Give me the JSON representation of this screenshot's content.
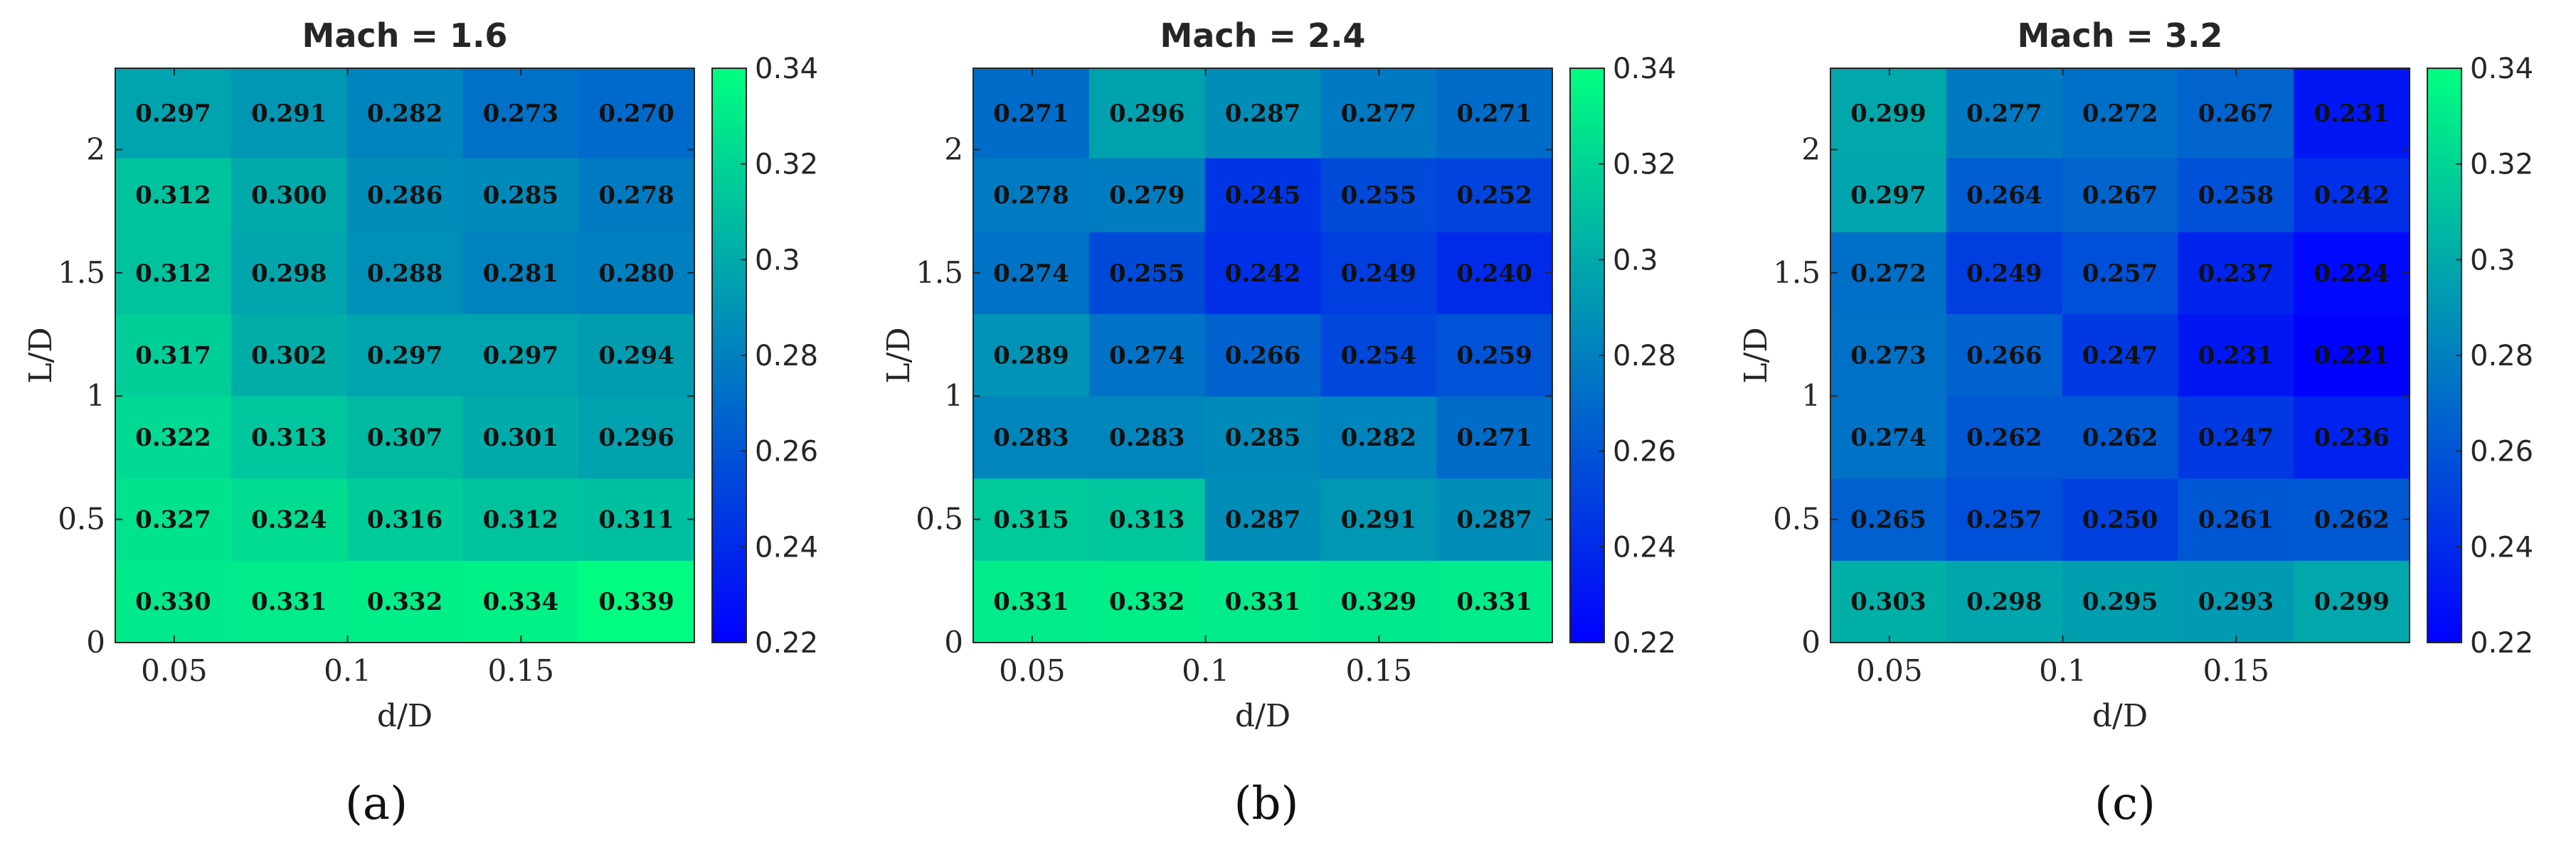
{
  "chart_data": [
    {
      "type": "heatmap",
      "panel_label": "(a)",
      "title": "Mach = 1.6",
      "xlabel": "d/D",
      "ylabel": "L/D",
      "x": [
        0.05,
        0.083,
        0.117,
        0.15,
        0.183
      ],
      "y": [
        0.167,
        0.5,
        0.833,
        1.167,
        1.5,
        1.833,
        2.1
      ],
      "xlim": [
        0.033,
        0.2
      ],
      "ylim": [
        0,
        2.33
      ],
      "xticks": [
        "0.05",
        "0.1",
        "0.15"
      ],
      "yticks": [
        "0",
        "0.5",
        "1",
        "1.5",
        "2"
      ],
      "values": [
        [
          0.33,
          0.331,
          0.332,
          0.334,
          0.339
        ],
        [
          0.327,
          0.324,
          0.316,
          0.312,
          0.311
        ],
        [
          0.322,
          0.313,
          0.307,
          0.301,
          0.296
        ],
        [
          0.317,
          0.302,
          0.297,
          0.297,
          0.294
        ],
        [
          0.312,
          0.298,
          0.288,
          0.281,
          0.28
        ],
        [
          0.312,
          0.3,
          0.286,
          0.285,
          0.278
        ],
        [
          0.297,
          0.291,
          0.282,
          0.273,
          0.27
        ]
      ],
      "labels": [
        [
          "0.330",
          "0.331",
          "0.332",
          "0.334",
          "0.339"
        ],
        [
          "0.327",
          "0.324",
          "0.316",
          "0.312",
          "0.311"
        ],
        [
          "0.322",
          "0.313",
          "0.307",
          "0.301",
          "0.296"
        ],
        [
          "0.317",
          "0.302",
          "0.297",
          "0.297",
          "0.294"
        ],
        [
          "0.312",
          "0.298",
          "0.288",
          "0.281",
          "0.280"
        ],
        [
          "0.312",
          "0.300",
          "0.286",
          "0.285",
          "0.278"
        ],
        [
          "0.297",
          "0.291",
          "0.282",
          "0.273",
          "0.270"
        ]
      ],
      "colorbar": {
        "range": [
          0.22,
          0.34
        ],
        "ticks": [
          "0.22",
          "0.24",
          "0.26",
          "0.28",
          "0.3",
          "0.32",
          "0.34"
        ]
      }
    },
    {
      "type": "heatmap",
      "panel_label": "(b)",
      "title": "Mach = 2.4",
      "xlabel": "d/D",
      "ylabel": "L/D",
      "x": [
        0.05,
        0.083,
        0.117,
        0.15,
        0.183
      ],
      "y": [
        0.167,
        0.5,
        0.833,
        1.167,
        1.5,
        1.833,
        2.1
      ],
      "xlim": [
        0.033,
        0.2
      ],
      "ylim": [
        0,
        2.33
      ],
      "xticks": [
        "0.05",
        "0.1",
        "0.15"
      ],
      "yticks": [
        "0",
        "0.5",
        "1",
        "1.5",
        "2"
      ],
      "values": [
        [
          0.331,
          0.332,
          0.331,
          0.329,
          0.331
        ],
        [
          0.315,
          0.313,
          0.287,
          0.291,
          0.287
        ],
        [
          0.283,
          0.283,
          0.285,
          0.282,
          0.271
        ],
        [
          0.289,
          0.274,
          0.266,
          0.254,
          0.259
        ],
        [
          0.274,
          0.255,
          0.242,
          0.249,
          0.24
        ],
        [
          0.278,
          0.279,
          0.245,
          0.255,
          0.252
        ],
        [
          0.271,
          0.296,
          0.287,
          0.277,
          0.271
        ]
      ],
      "labels": [
        [
          "0.331",
          "0.332",
          "0.331",
          "0.329",
          "0.331"
        ],
        [
          "0.315",
          "0.313",
          "0.287",
          "0.291",
          "0.287"
        ],
        [
          "0.283",
          "0.283",
          "0.285",
          "0.282",
          "0.271"
        ],
        [
          "0.289",
          "0.274",
          "0.266",
          "0.254",
          "0.259"
        ],
        [
          "0.274",
          "0.255",
          "0.242",
          "0.249",
          "0.240"
        ],
        [
          "0.278",
          "0.279",
          "0.245",
          "0.255",
          "0.252"
        ],
        [
          "0.271",
          "0.296",
          "0.287",
          "0.277",
          "0.271"
        ]
      ],
      "colorbar": {
        "range": [
          0.22,
          0.34
        ],
        "ticks": [
          "0.22",
          "0.24",
          "0.26",
          "0.28",
          "0.3",
          "0.32",
          "0.34"
        ]
      }
    },
    {
      "type": "heatmap",
      "panel_label": "(c)",
      "title": "Mach = 3.2",
      "xlabel": "d/D",
      "ylabel": "L/D",
      "x": [
        0.05,
        0.083,
        0.117,
        0.15,
        0.183
      ],
      "y": [
        0.167,
        0.5,
        0.833,
        1.167,
        1.5,
        1.833,
        2.1
      ],
      "xlim": [
        0.033,
        0.2
      ],
      "ylim": [
        0,
        2.33
      ],
      "xticks": [
        "0.05",
        "0.1",
        "0.15"
      ],
      "yticks": [
        "0",
        "0.5",
        "1",
        "1.5",
        "2"
      ],
      "values": [
        [
          0.303,
          0.298,
          0.295,
          0.293,
          0.299
        ],
        [
          0.265,
          0.257,
          0.25,
          0.261,
          0.262
        ],
        [
          0.274,
          0.262,
          0.262,
          0.247,
          0.236
        ],
        [
          0.273,
          0.266,
          0.247,
          0.231,
          0.221
        ],
        [
          0.272,
          0.249,
          0.257,
          0.237,
          0.224
        ],
        [
          0.297,
          0.264,
          0.267,
          0.258,
          0.242
        ],
        [
          0.299,
          0.277,
          0.272,
          0.267,
          0.231
        ]
      ],
      "labels": [
        [
          "0.303",
          "0.298",
          "0.295",
          "0.293",
          "0.299"
        ],
        [
          "0.265",
          "0.257",
          "0.250",
          "0.261",
          "0.262"
        ],
        [
          "0.274",
          "0.262",
          "0.262",
          "0.247",
          "0.236"
        ],
        [
          "0.273",
          "0.266",
          "0.247",
          "0.231",
          "0.221"
        ],
        [
          "0.272",
          "0.249",
          "0.257",
          "0.237",
          "0.224"
        ],
        [
          "0.297",
          "0.264",
          "0.267",
          "0.258",
          "0.242"
        ],
        [
          "0.299",
          "0.277",
          "0.272",
          "0.267",
          "0.231"
        ]
      ],
      "colorbar": {
        "range": [
          0.22,
          0.34
        ],
        "ticks": [
          "0.22",
          "0.24",
          "0.26",
          "0.28",
          "0.3",
          "0.32",
          "0.34"
        ]
      }
    }
  ],
  "colors": {
    "colormap_low": "#0000ff",
    "colormap_high": "#00ff80",
    "axis": "#262626",
    "cell_text": "#111111",
    "background": "#ffffff"
  }
}
